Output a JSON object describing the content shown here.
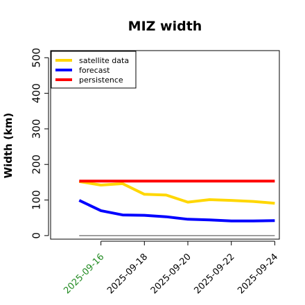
{
  "chart_data": {
    "type": "line",
    "title": "MIZ width",
    "xlabel": "",
    "ylabel": "Width (km)",
    "ylim": [
      -10,
      520
    ],
    "yticks": [
      0,
      100,
      200,
      300,
      400,
      500
    ],
    "x": [
      "2025-09-15",
      "2025-09-16",
      "2025-09-17",
      "2025-09-18",
      "2025-09-19",
      "2025-09-20",
      "2025-09-21",
      "2025-09-22",
      "2025-09-23",
      "2025-09-24"
    ],
    "xlim": [
      "2025-09-14",
      "2025-09-24"
    ],
    "xticks": [
      "2025-09-16",
      "2025-09-18",
      "2025-09-20",
      "2025-09-22",
      "2025-09-24"
    ],
    "highlighted_tick": "2025-09-16",
    "legend_position": "top-left",
    "grid": false,
    "baseline": 0,
    "series": [
      {
        "name": "satellite data",
        "color": "#ffd700",
        "values": [
          152,
          142,
          146,
          116,
          114,
          94,
          101,
          99,
          96,
          91
        ]
      },
      {
        "name": "forecast",
        "color": "#0000ff",
        "values": [
          99,
          70,
          58,
          57,
          53,
          46,
          44,
          41,
          41,
          42
        ]
      },
      {
        "name": "persistence",
        "color": "#ff0000",
        "values": [
          153,
          153,
          153,
          153,
          153,
          153,
          153,
          153,
          153,
          153
        ]
      }
    ],
    "colors": {
      "highlight_tick": "#228b22",
      "baseline": "#808080"
    }
  }
}
